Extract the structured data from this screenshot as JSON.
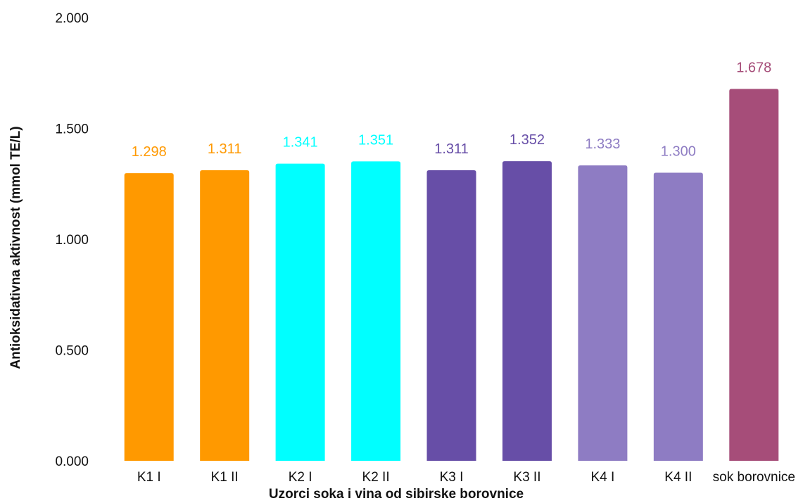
{
  "chart_data": {
    "type": "bar",
    "xlabel": "Uzorci soka i vina od sibirske borovnice",
    "ylabel": "Antioksidativna aktivnost (mmol TE/L)",
    "ylim": [
      0,
      2
    ],
    "yticks": [
      0,
      0.5,
      1,
      1.5,
      2
    ],
    "ytick_labels": [
      "0.000",
      "0.500",
      "1.000",
      "1.500",
      "2.000"
    ],
    "grid": false,
    "legend": "none",
    "categories": [
      "K1 I",
      "K1 II",
      "K2 I",
      "K2 II",
      "K3 I",
      "K3 II",
      "K4 I",
      "K4 II",
      "sok borovnice"
    ],
    "values": [
      1.298,
      1.311,
      1.341,
      1.351,
      1.311,
      1.352,
      1.333,
      1.3,
      1.678
    ],
    "value_labels": [
      "1.298",
      "1.311",
      "1.341",
      "1.351",
      "1.311",
      "1.352",
      "1.333",
      "1.300",
      "1.678"
    ],
    "colors": [
      "#ff9900",
      "#ff9900",
      "#00ffff",
      "#00ffff",
      "#674ea7",
      "#674ea7",
      "#8e7cc3",
      "#8e7cc3",
      "#a64d79"
    ]
  }
}
